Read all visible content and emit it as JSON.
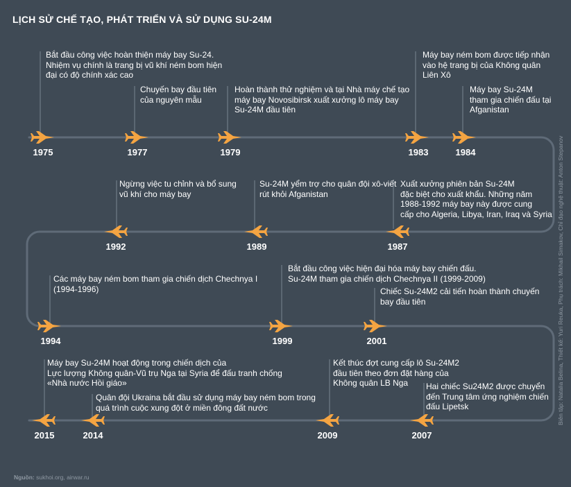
{
  "title": "LỊCH SỬ CHẾ TẠO, PHÁT TRIỂN VÀ SỬ DỤNG SU-24M",
  "colors": {
    "background": "#3f4a55",
    "track": "#5f6b78",
    "plane": "#f4a442",
    "connector": "#7a8591"
  },
  "events": [
    {
      "year": "1975",
      "direction": "right",
      "lines": [
        "Bắt đầu công việc hoàn thiện máy bay Su-24.",
        "Nhiệm vụ chính là trang bị vũ khí ném bom hiện",
        "đại có độ chính xác cao"
      ]
    },
    {
      "year": "1977",
      "direction": "right",
      "lines": [
        "Chuyến bay đầu tiên",
        "của nguyên mẫu"
      ]
    },
    {
      "year": "1979",
      "direction": "right",
      "lines": [
        "Hoàn thành thử nghiệm và tại Nhà máy chế tạo",
        "máy bay Novosibirsk xuất xưởng lô máy bay",
        "Su-24M đầu tiên"
      ]
    },
    {
      "year": "1983",
      "direction": "right",
      "lines": [
        "Máy bay ném bom được tiếp nhận",
        "vào hệ trang bị của Không quân",
        "Liên Xô"
      ]
    },
    {
      "year": "1984",
      "direction": "right",
      "lines": [
        "Máy bay Su-24M",
        "tham gia chiến đấu tại",
        "Afganistan"
      ]
    },
    {
      "year": "1987",
      "direction": "left",
      "lines": [
        "Xuất xưởng phiên bản Su-24M",
        "đặc biệt cho xuất khẩu. Những năm",
        "1988-1992 máy bay này được cung",
        "cấp cho Algeria, Libya, Iran, Iraq và Syria"
      ]
    },
    {
      "year": "1989",
      "direction": "left",
      "lines": [
        "Su-24M yểm trợ cho quân đội xô-viết",
        "rút khỏi Afganistan"
      ]
    },
    {
      "year": "1992",
      "direction": "left",
      "lines": [
        "Ngừng việc tu chỉnh và bổ sung",
        "vũ khí cho máy bay"
      ]
    },
    {
      "year": "1994",
      "direction": "right",
      "lines": [
        "Các máy bay ném bom tham gia chiến dịch Chechnya I",
        "(1994-1996)"
      ]
    },
    {
      "year": "1999",
      "direction": "right",
      "lines": [
        "Bắt đầu công việc hiện đại hóa máy bay chiến đấu.",
        "Su-24M tham gia chiến dịch Chechnya II (1999-2009)"
      ]
    },
    {
      "year": "2001",
      "direction": "right",
      "lines": [
        "Chiếc Su-24M2 cải tiến hoàn thành chuyến",
        "bay đầu tiên"
      ]
    },
    {
      "year": "2007",
      "direction": "left",
      "lines": [
        "Hai chiếc Su24M2 được chuyển",
        "đến Trung tâm ứng nghiệm chiến",
        "đấu Lipetsk"
      ]
    },
    {
      "year": "2009",
      "direction": "left",
      "lines": [
        "Kết thúc đợt cung cấp lô Su-24M2",
        "đầu tiên theo đơn đặt hàng của",
        "Không quân LB Nga"
      ]
    },
    {
      "year": "2014",
      "direction": "left",
      "lines": [
        "Quân đội Ukraina bắt đầu sử dụng máy bay ném bom trong",
        "quá trình cuộc xung đột ở miền đông đất nước"
      ]
    },
    {
      "year": "2015",
      "direction": "left",
      "lines": [
        "Máy bay Su-24M hoạt động trong chiến dịch của",
        "Lực lượng Không quân-Vũ trụ Nga tại Syria để đấu tranh chống",
        "«Nhà nước Hồi giáo»"
      ]
    }
  ],
  "credit": "Biên tập: Natalia Belina, Thiết kế: Yuri Reuka, Phụ trách: Mikhail Simakov, Chỉ đạo nghệ thuật: Anton Stepanov",
  "source_label": "Nguồn:",
  "source_text": "sukhoi.org, airwar.ru"
}
